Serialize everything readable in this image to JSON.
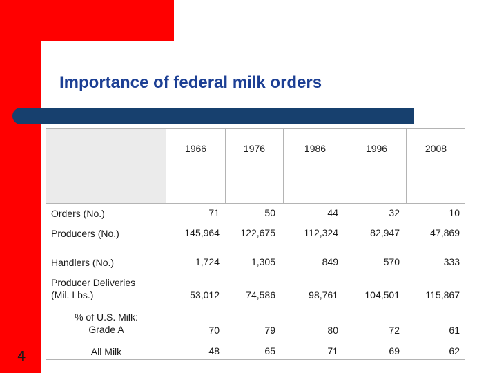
{
  "slide": {
    "title": "Importance of federal milk orders",
    "page_number": "4"
  },
  "colors": {
    "frame_red": "#ff0000",
    "title_blue": "#1c3f94",
    "bar_navy": "#17406e"
  },
  "table": {
    "years": [
      "1966",
      "1976",
      "1986",
      "1996",
      "2008"
    ],
    "rows": [
      {
        "label": "Orders (No.)",
        "values": [
          "71",
          "50",
          "44",
          "32",
          "10"
        ]
      },
      {
        "label": "Producers (No.)",
        "values": [
          "145,964",
          "122,675",
          "112,324",
          "82,947",
          "47,869"
        ]
      },
      {
        "label": "Handlers (No.)",
        "values": [
          "1,724",
          "1,305",
          "849",
          "570",
          "333"
        ]
      },
      {
        "label": "Producer Deliveries\n(Mil. Lbs.)",
        "values": [
          "53,012",
          "74,586",
          "98,761",
          "104,501",
          "115,867"
        ]
      },
      {
        "label": "% of U.S. Milk:\nGrade A",
        "values": [
          "70",
          "79",
          "80",
          "72",
          "61"
        ]
      },
      {
        "label": "All Milk",
        "values": [
          "48",
          "65",
          "71",
          "69",
          "62"
        ]
      }
    ]
  }
}
